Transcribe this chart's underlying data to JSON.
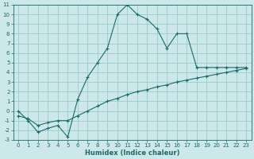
{
  "xlabel": "Humidex (Indice chaleur)",
  "bg_color": "#cce8e8",
  "grid_color": "#99cccc",
  "line_color": "#1a6b6b",
  "curve1_x": [
    0,
    1,
    2,
    3,
    4,
    5,
    6,
    7,
    8,
    9,
    10,
    11,
    12,
    13,
    14,
    15,
    16,
    17,
    18,
    19,
    20,
    21,
    22,
    23
  ],
  "curve1_y": [
    0,
    -1,
    -2.2,
    -1.8,
    -1.5,
    -2.7,
    1.2,
    3.5,
    5,
    6.5,
    10,
    11,
    10,
    9.5,
    8.5,
    6.5,
    8,
    8,
    4.5,
    4.5,
    4.5,
    4.5,
    4.5,
    4.5
  ],
  "curve2_x": [
    0,
    1,
    2,
    3,
    4,
    5,
    6,
    7,
    8,
    9,
    10,
    11,
    12,
    13,
    14,
    15,
    16,
    17,
    18,
    19,
    20,
    21,
    22,
    23
  ],
  "curve2_y": [
    -0.5,
    -0.8,
    -1.5,
    -1.2,
    -1.0,
    -1.0,
    -0.5,
    0.0,
    0.5,
    1.0,
    1.3,
    1.7,
    2.0,
    2.2,
    2.5,
    2.7,
    3.0,
    3.2,
    3.4,
    3.6,
    3.8,
    4.0,
    4.2,
    4.4
  ],
  "ylim": [
    -3,
    11
  ],
  "xlim": [
    -0.5,
    23.5
  ],
  "yticks": [
    -3,
    -2,
    -1,
    0,
    1,
    2,
    3,
    4,
    5,
    6,
    7,
    8,
    9,
    10,
    11
  ],
  "xticks": [
    0,
    1,
    2,
    3,
    4,
    5,
    6,
    7,
    8,
    9,
    10,
    11,
    12,
    13,
    14,
    15,
    16,
    17,
    18,
    19,
    20,
    21,
    22,
    23
  ],
  "tick_fontsize": 5,
  "xlabel_fontsize": 6
}
